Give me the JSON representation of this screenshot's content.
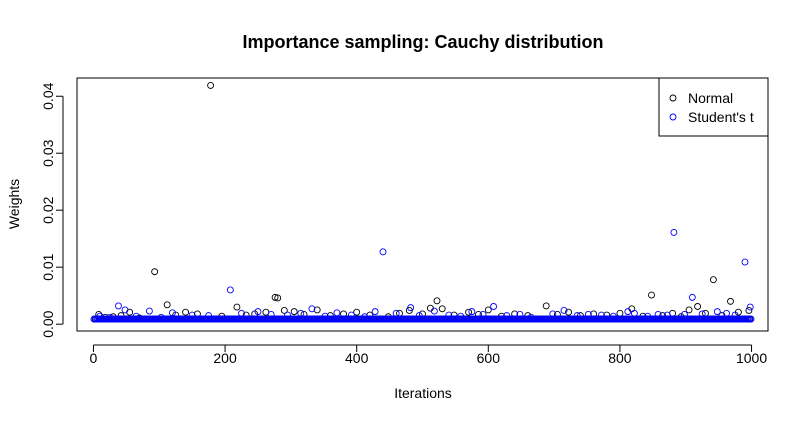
{
  "chart_data": {
    "type": "scatter",
    "title": "Importance sampling: Cauchy distribution",
    "xlabel": "Iterations",
    "ylabel": "Weights",
    "xlim": [
      -25,
      1025
    ],
    "ylim": [
      -0.0012,
      0.0432
    ],
    "x_ticks": [
      0,
      200,
      400,
      600,
      800,
      1000
    ],
    "x_tick_labels": [
      "0",
      "200",
      "400",
      "600",
      "800",
      "1000"
    ],
    "y_ticks": [
      0,
      0.01,
      0.02,
      0.03,
      0.04
    ],
    "y_tick_labels": [
      "0.00",
      "0.01",
      "0.02",
      "0.03",
      "0.04"
    ],
    "grid": false,
    "legend": {
      "position": "top-right",
      "entries": [
        "Normal",
        "Student's t"
      ]
    },
    "series": [
      {
        "name": "Normal",
        "color": "#000000",
        "baseline": 0.0009,
        "n_points": 1000,
        "points": [
          [
            8,
            0.0017
          ],
          [
            18,
            0.0012
          ],
          [
            30,
            0.0013
          ],
          [
            42,
            0.0015
          ],
          [
            55,
            0.0021
          ],
          [
            70,
            0.0011
          ],
          [
            93,
            0.0092
          ],
          [
            112,
            0.0034
          ],
          [
            125,
            0.0016
          ],
          [
            140,
            0.0021
          ],
          [
            158,
            0.0018
          ],
          [
            178,
            0.0419
          ],
          [
            195,
            0.0014
          ],
          [
            218,
            0.003
          ],
          [
            232,
            0.0016
          ],
          [
            245,
            0.0018
          ],
          [
            262,
            0.0021
          ],
          [
            276,
            0.0047
          ],
          [
            280,
            0.0046
          ],
          [
            290,
            0.0024
          ],
          [
            305,
            0.0022
          ],
          [
            320,
            0.0017
          ],
          [
            340,
            0.0025
          ],
          [
            360,
            0.0015
          ],
          [
            380,
            0.0018
          ],
          [
            400,
            0.0021
          ],
          [
            420,
            0.0016
          ],
          [
            448,
            0.0013
          ],
          [
            465,
            0.0019
          ],
          [
            480,
            0.0024
          ],
          [
            500,
            0.0018
          ],
          [
            512,
            0.0028
          ],
          [
            522,
            0.0041
          ],
          [
            530,
            0.0027
          ],
          [
            548,
            0.0016
          ],
          [
            570,
            0.0021
          ],
          [
            585,
            0.0017
          ],
          [
            600,
            0.0025
          ],
          [
            620,
            0.0014
          ],
          [
            640,
            0.0018
          ],
          [
            660,
            0.0015
          ],
          [
            688,
            0.0032
          ],
          [
            705,
            0.0017
          ],
          [
            722,
            0.0021
          ],
          [
            740,
            0.0015
          ],
          [
            760,
            0.0018
          ],
          [
            780,
            0.0016
          ],
          [
            800,
            0.0019
          ],
          [
            818,
            0.0027
          ],
          [
            835,
            0.0014
          ],
          [
            848,
            0.0051
          ],
          [
            865,
            0.0015
          ],
          [
            880,
            0.0019
          ],
          [
            893,
            0.0013
          ],
          [
            905,
            0.0025
          ],
          [
            918,
            0.0031
          ],
          [
            930,
            0.0019
          ],
          [
            942,
            0.0078
          ],
          [
            955,
            0.0015
          ],
          [
            968,
            0.004
          ],
          [
            980,
            0.0021
          ],
          [
            996,
            0.0024
          ]
        ]
      },
      {
        "name": "Student's t",
        "color": "#0000ff",
        "baseline": 0.0009,
        "n_points": 1000,
        "points": [
          [
            10,
            0.0014
          ],
          [
            25,
            0.0012
          ],
          [
            38,
            0.0032
          ],
          [
            48,
            0.0025
          ],
          [
            65,
            0.0014
          ],
          [
            85,
            0.0023
          ],
          [
            103,
            0.0012
          ],
          [
            120,
            0.002
          ],
          [
            150,
            0.0016
          ],
          [
            175,
            0.0015
          ],
          [
            208,
            0.006
          ],
          [
            225,
            0.0019
          ],
          [
            250,
            0.0022
          ],
          [
            270,
            0.0017
          ],
          [
            295,
            0.0016
          ],
          [
            315,
            0.0019
          ],
          [
            332,
            0.0027
          ],
          [
            352,
            0.0014
          ],
          [
            370,
            0.002
          ],
          [
            392,
            0.0016
          ],
          [
            412,
            0.0013
          ],
          [
            428,
            0.0022
          ],
          [
            440,
            0.0127
          ],
          [
            460,
            0.0019
          ],
          [
            482,
            0.0029
          ],
          [
            495,
            0.0015
          ],
          [
            518,
            0.0023
          ],
          [
            540,
            0.0016
          ],
          [
            558,
            0.0014
          ],
          [
            575,
            0.0022
          ],
          [
            592,
            0.0017
          ],
          [
            608,
            0.0031
          ],
          [
            628,
            0.0015
          ],
          [
            648,
            0.0017
          ],
          [
            665,
            0.0012
          ],
          [
            698,
            0.0018
          ],
          [
            715,
            0.0024
          ],
          [
            735,
            0.0015
          ],
          [
            752,
            0.0017
          ],
          [
            772,
            0.0016
          ],
          [
            790,
            0.0014
          ],
          [
            812,
            0.0022
          ],
          [
            822,
            0.0019
          ],
          [
            842,
            0.0014
          ],
          [
            858,
            0.0017
          ],
          [
            872,
            0.0016
          ],
          [
            882,
            0.0161
          ],
          [
            898,
            0.0017
          ],
          [
            910,
            0.0047
          ],
          [
            925,
            0.0018
          ],
          [
            948,
            0.0022
          ],
          [
            962,
            0.0019
          ],
          [
            975,
            0.0016
          ],
          [
            990,
            0.0109
          ],
          [
            998,
            0.003
          ]
        ]
      }
    ]
  }
}
